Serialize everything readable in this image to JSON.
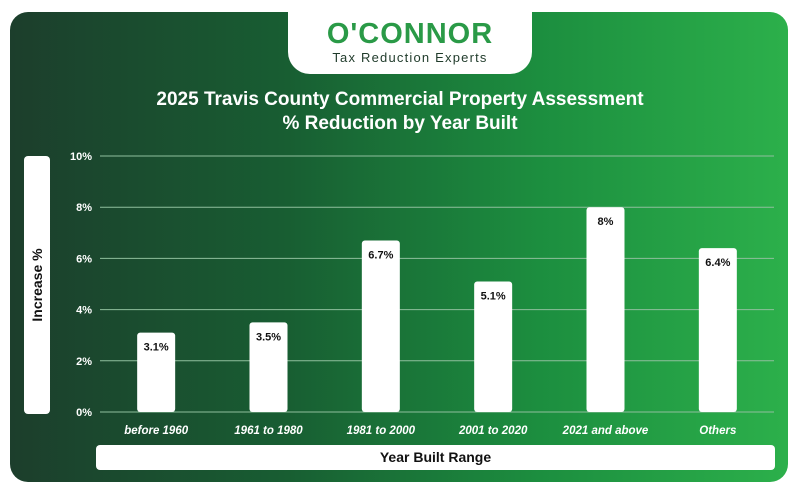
{
  "logo": {
    "name": "O'CONNOR",
    "tagline": "Tax Reduction Experts"
  },
  "chart_data": {
    "type": "bar",
    "title_lines": [
      "2025 Travis County Commercial Property Assessment",
      "% Reduction by Year Built"
    ],
    "xlabel": "Year Built Range",
    "ylabel": "Increase %",
    "categories": [
      "before 1960",
      "1961 to 1980",
      "1981 to 2000",
      "2001 to 2020",
      "2021 and above",
      "Others"
    ],
    "values": [
      3.1,
      3.5,
      6.7,
      5.1,
      8,
      6.4
    ],
    "data_labels": [
      "3.1%",
      "3.5%",
      "6.7%",
      "5.1%",
      "8%",
      "6.4%"
    ],
    "ylim": [
      0,
      10
    ],
    "yticks": [
      0,
      2,
      4,
      6,
      8,
      10
    ],
    "ytick_labels": [
      "0%",
      "2%",
      "4%",
      "6%",
      "8%",
      "10%"
    ],
    "grid": true,
    "colors": {
      "bar": "#ffffff",
      "gridline": "#8fbf9d",
      "text": "#ffffff",
      "label_text": "#111111"
    }
  }
}
